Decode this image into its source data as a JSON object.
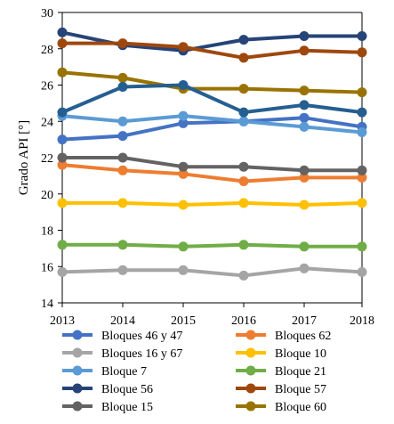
{
  "chart_data": {
    "type": "line",
    "title": "",
    "xlabel": "",
    "ylabel": "Grado API [°]",
    "x": [
      "2013",
      "2014",
      "2015",
      "2016",
      "2017",
      "2018"
    ],
    "ylim": [
      14,
      30
    ],
    "yticks": [
      14,
      16,
      18,
      20,
      22,
      24,
      26,
      28,
      30
    ],
    "grid": false,
    "legend_position": "bottom",
    "series": [
      {
        "name": "Bloques 46 y 47",
        "color": "#4472C4",
        "values": [
          23.0,
          23.2,
          23.9,
          24.0,
          24.2,
          23.7
        ]
      },
      {
        "name": "Bloques 62",
        "color": "#ED7D31",
        "values": [
          21.6,
          21.3,
          21.1,
          20.7,
          20.9,
          20.9
        ]
      },
      {
        "name": "Bloques 16 y 67",
        "color": "#A5A5A5",
        "values": [
          15.7,
          15.8,
          15.8,
          15.5,
          15.9,
          15.7
        ]
      },
      {
        "name": "Bloque 10",
        "color": "#FFC000",
        "values": [
          19.5,
          19.5,
          19.4,
          19.5,
          19.4,
          19.5
        ]
      },
      {
        "name": "Bloque 7",
        "color": "#5B9BD5",
        "values": [
          24.3,
          24.0,
          24.3,
          24.0,
          23.7,
          23.4
        ]
      },
      {
        "name": "Bloque 21",
        "color": "#70AD47",
        "values": [
          17.2,
          17.2,
          17.1,
          17.2,
          17.1,
          17.1
        ]
      },
      {
        "name": "Bloque 56",
        "color": "#264478",
        "values": [
          28.9,
          28.2,
          27.9,
          28.5,
          28.7,
          28.7
        ]
      },
      {
        "name": "Bloque 57",
        "color": "#9E480E",
        "values": [
          28.3,
          28.3,
          28.1,
          27.5,
          27.9,
          27.8
        ]
      },
      {
        "name": "Bloque 15",
        "color": "#636363",
        "values": [
          22.0,
          22.0,
          21.5,
          21.5,
          21.3,
          21.3
        ]
      },
      {
        "name": "Bloque 60",
        "color": "#997300",
        "values": [
          26.7,
          26.4,
          25.8,
          25.8,
          25.7,
          25.6
        ]
      },
      {
        "name": "",
        "color": "#255E91",
        "values": [
          24.5,
          25.9,
          26.0,
          24.5,
          24.9,
          24.5
        ]
      }
    ]
  }
}
